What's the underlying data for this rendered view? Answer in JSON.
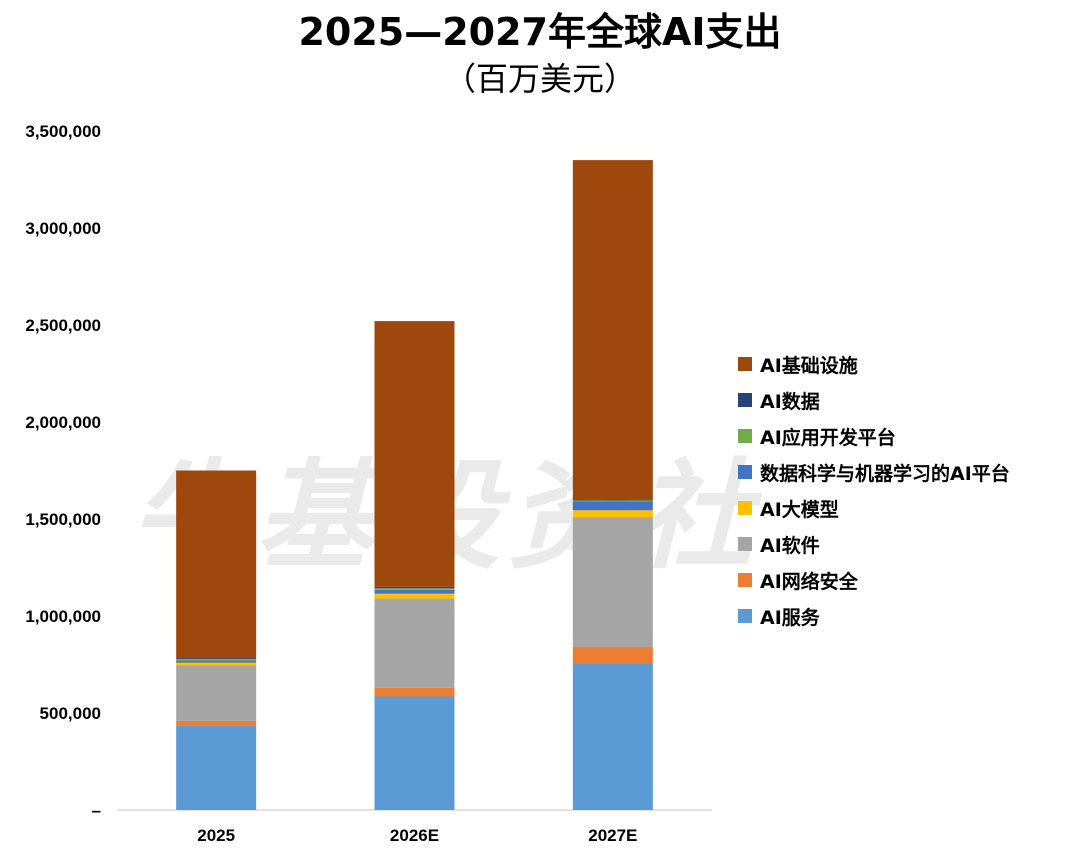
{
  "title": "2025—2027年全球AI支出",
  "subtitle": "（百万美元）",
  "watermark": "牛基投资社",
  "chart_data": {
    "type": "bar",
    "stacked": true,
    "title": "2025—2027年全球AI支出",
    "subtitle": "（百万美元）",
    "xlabel": "",
    "ylabel": "",
    "categories": [
      "2025",
      "2026E",
      "2027E"
    ],
    "ylim": [
      0,
      3500000
    ],
    "yticks": [
      {
        "value": 0,
        "label": "–"
      },
      {
        "value": 500000,
        "label": "500,000"
      },
      {
        "value": 1000000,
        "label": "1,000,000"
      },
      {
        "value": 1500000,
        "label": "1,500,000"
      },
      {
        "value": 2000000,
        "label": "2,000,000"
      },
      {
        "value": 2500000,
        "label": "2,500,000"
      },
      {
        "value": 3000000,
        "label": "3,000,000"
      },
      {
        "value": 3500000,
        "label": "3,500,000"
      }
    ],
    "grid": false,
    "legend_position": "right",
    "series": [
      {
        "name": "AI服务",
        "color": "#5b9bd5",
        "values": [
          435000,
          585000,
          755000
        ]
      },
      {
        "name": "AI网络安全",
        "color": "#ed7d31",
        "values": [
          25000,
          45000,
          85000
        ]
      },
      {
        "name": "AI软件",
        "color": "#a5a5a5",
        "values": [
          285000,
          460000,
          670000
        ]
      },
      {
        "name": "AI大模型",
        "color": "#ffc000",
        "values": [
          15000,
          25000,
          35000
        ]
      },
      {
        "name": "数据科学与机器学习的AI平台",
        "color": "#4472c4",
        "values": [
          10000,
          20000,
          45000
        ]
      },
      {
        "name": "AI应用开发平台",
        "color": "#70ad47",
        "values": [
          8000,
          8000,
          6000
        ]
      },
      {
        "name": "AI数据",
        "color": "#264478",
        "values": [
          5000,
          7000,
          6000
        ]
      },
      {
        "name": "AI基础设施",
        "color": "#9e480e",
        "values": [
          967000,
          1370000,
          1748000
        ]
      }
    ]
  }
}
